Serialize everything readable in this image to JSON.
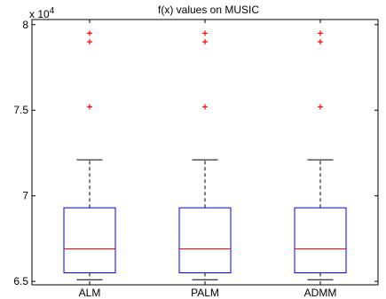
{
  "chart_data": {
    "type": "boxplot",
    "title": "f(x) values on MUSIC",
    "xlabel": "",
    "ylabel": "",
    "y_multiplier_label": "x 10",
    "y_multiplier_exponent": "4",
    "categories": [
      "ALM",
      "PALM",
      "ADMM"
    ],
    "ylim": [
      6.48,
      8.03
    ],
    "yticks": [
      6.5,
      7,
      7.5,
      8
    ],
    "ytick_labels": [
      "6.5",
      "7",
      "7.5",
      "8"
    ],
    "boxes": [
      {
        "name": "ALM",
        "whisker_low": 6.51,
        "q1": 6.55,
        "median": 6.69,
        "q3": 6.93,
        "whisker_high": 7.21,
        "outliers": [
          7.52,
          7.9,
          7.95
        ]
      },
      {
        "name": "PALM",
        "whisker_low": 6.51,
        "q1": 6.55,
        "median": 6.69,
        "q3": 6.93,
        "whisker_high": 7.21,
        "outliers": [
          7.52,
          7.9,
          7.95
        ]
      },
      {
        "name": "ADMM",
        "whisker_low": 6.51,
        "q1": 6.55,
        "median": 6.69,
        "q3": 6.93,
        "whisker_high": 7.21,
        "outliers": [
          7.52,
          7.9,
          7.95
        ]
      }
    ],
    "colors": {
      "box": "#0000ff",
      "median": "#ff0000",
      "whisker": "#000000",
      "outlier": "#ff0000"
    },
    "grid": false,
    "legend": "none"
  }
}
